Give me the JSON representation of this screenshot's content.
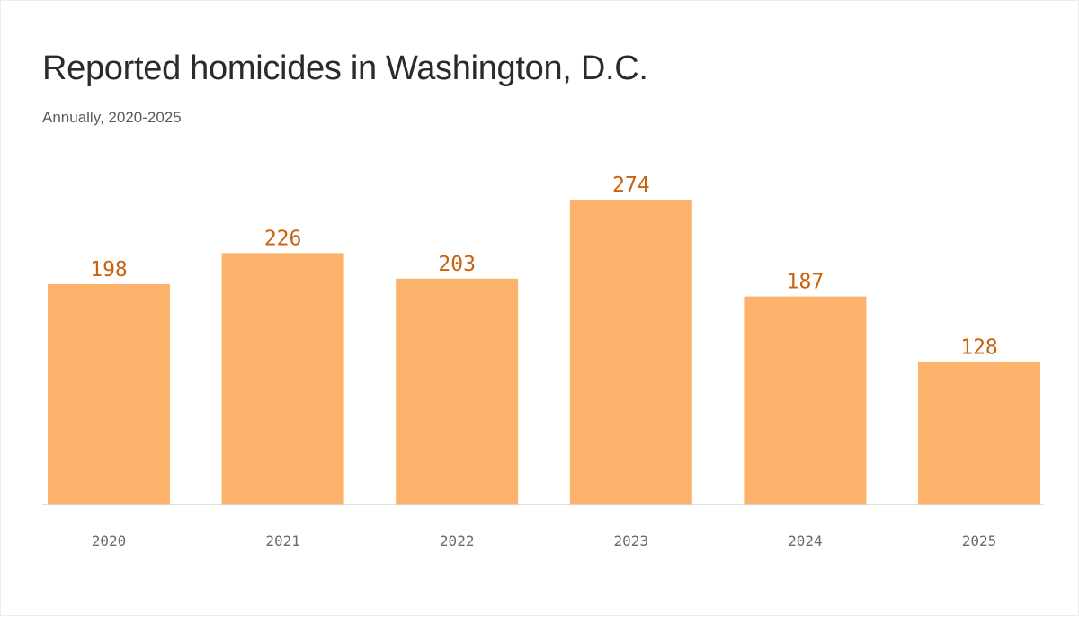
{
  "chart_data": {
    "type": "bar",
    "title": "Reported homicides in Washington, D.C.",
    "subtitle": "Annually, 2020-2025",
    "categories": [
      "2020",
      "2021",
      "2022",
      "2023",
      "2024",
      "2025"
    ],
    "values": [
      198,
      226,
      203,
      274,
      187,
      128
    ],
    "ylim": [
      0,
      274
    ],
    "grid": false,
    "bar_color": "#fdb26b",
    "label_color": "#c8620e"
  }
}
